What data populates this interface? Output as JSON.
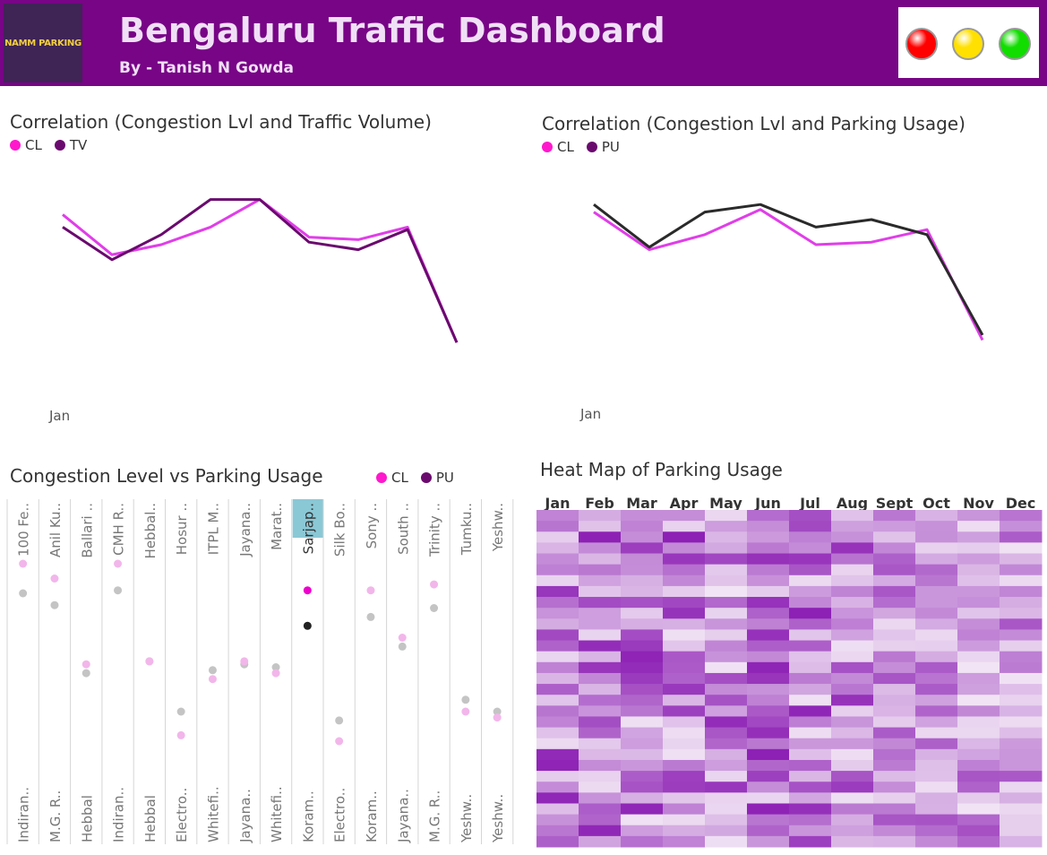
{
  "header": {
    "logo_text": "NAMM PARKING",
    "title": "Bengaluru Traffic Dashboard",
    "subtitle": "By - Tanish N Gowda",
    "lights": [
      {
        "name": "red-light-icon",
        "color": "#ff0000"
      },
      {
        "name": "yellow-light-icon",
        "color": "#ffe000"
      },
      {
        "name": "green-light-icon",
        "color": "#11dd00"
      }
    ]
  },
  "colors": {
    "cl": "#ff18cc",
    "tv": "#6a0a6e",
    "pu": "#6a0a6e"
  },
  "chart_data": [
    {
      "type": "line",
      "title": "Correlation (Congestion Lvl and Traffic Volume)",
      "x_label": "Jan",
      "series": [
        {
          "name": "CL",
          "color": "#e03ee8",
          "values": [
            0.77,
            0.61,
            0.65,
            0.72,
            0.83,
            0.68,
            0.67,
            0.72,
            0.26
          ]
        },
        {
          "name": "TV",
          "color": "#6a0a6e",
          "values": [
            0.72,
            0.59,
            0.69,
            0.83,
            0.83,
            0.66,
            0.63,
            0.71,
            0.26
          ]
        }
      ]
    },
    {
      "type": "line",
      "title": "Correlation (Congestion Lvl and Parking Usage)",
      "x_label": "Jan",
      "series": [
        {
          "name": "CL",
          "color": "#e03ee8",
          "values": [
            0.78,
            0.63,
            0.69,
            0.79,
            0.65,
            0.66,
            0.71,
            0.27
          ]
        },
        {
          "name": "PU",
          "color": "#2a2a2a",
          "values": [
            0.81,
            0.64,
            0.78,
            0.81,
            0.72,
            0.75,
            0.69,
            0.29
          ]
        }
      ]
    },
    {
      "type": "scatter",
      "title": "Congestion Level vs Parking Usage",
      "legend": [
        "CL",
        "PU"
      ],
      "columns": [
        {
          "top": "100 Fe..",
          "bottom": "Indiran..",
          "cl": 0.8,
          "pu": 0.7
        },
        {
          "top": "Anil Ku..",
          "bottom": "M.G. R..",
          "cl": 0.75,
          "pu": 0.66
        },
        {
          "top": "Ballari ..",
          "bottom": "Hebbal",
          "cl": 0.46,
          "pu": 0.43
        },
        {
          "top": "CMH R..",
          "bottom": "Indiran..",
          "cl": 0.8,
          "pu": 0.71
        },
        {
          "top": "Hebbal..",
          "bottom": "Hebbal",
          "cl": 0.47,
          "pu": 0.47
        },
        {
          "top": "Hosur ..",
          "bottom": "Electro..",
          "cl": 0.22,
          "pu": 0.3
        },
        {
          "top": "ITPL M..",
          "bottom": "Whitefi..",
          "cl": 0.41,
          "pu": 0.44
        },
        {
          "top": "Jayana..",
          "bottom": "Jayana..",
          "cl": 0.47,
          "pu": 0.46
        },
        {
          "top": "Marat..",
          "bottom": "Whitefi..",
          "cl": 0.43,
          "pu": 0.45
        },
        {
          "top": "Sarjap..",
          "bottom": "Koram..",
          "cl": 0.71,
          "pu": 0.59,
          "highlight": true
        },
        {
          "top": "Silk Bo..",
          "bottom": "Electro..",
          "cl": 0.2,
          "pu": 0.27
        },
        {
          "top": "Sony ..",
          "bottom": "Koram..",
          "cl": 0.71,
          "pu": 0.62
        },
        {
          "top": "South ..",
          "bottom": "Jayana..",
          "cl": 0.55,
          "pu": 0.52
        },
        {
          "top": "Trinity ..",
          "bottom": "M.G. R..",
          "cl": 0.73,
          "pu": 0.65
        },
        {
          "top": "Tumku..",
          "bottom": "Yeshw..",
          "cl": 0.3,
          "pu": 0.34
        },
        {
          "top": "Yeshw..",
          "bottom": "Yeshw..",
          "cl": 0.28,
          "pu": 0.3
        }
      ]
    },
    {
      "type": "heatmap",
      "title": "Heat Map of Parking Usage",
      "columns": [
        "Jan",
        "Feb",
        "Mar",
        "Apr",
        "May",
        "Jun",
        "Jul",
        "Aug",
        "Sept",
        "Oct",
        "Nov",
        "Dec"
      ],
      "rows": 31,
      "value_range": [
        0,
        1
      ]
    }
  ]
}
